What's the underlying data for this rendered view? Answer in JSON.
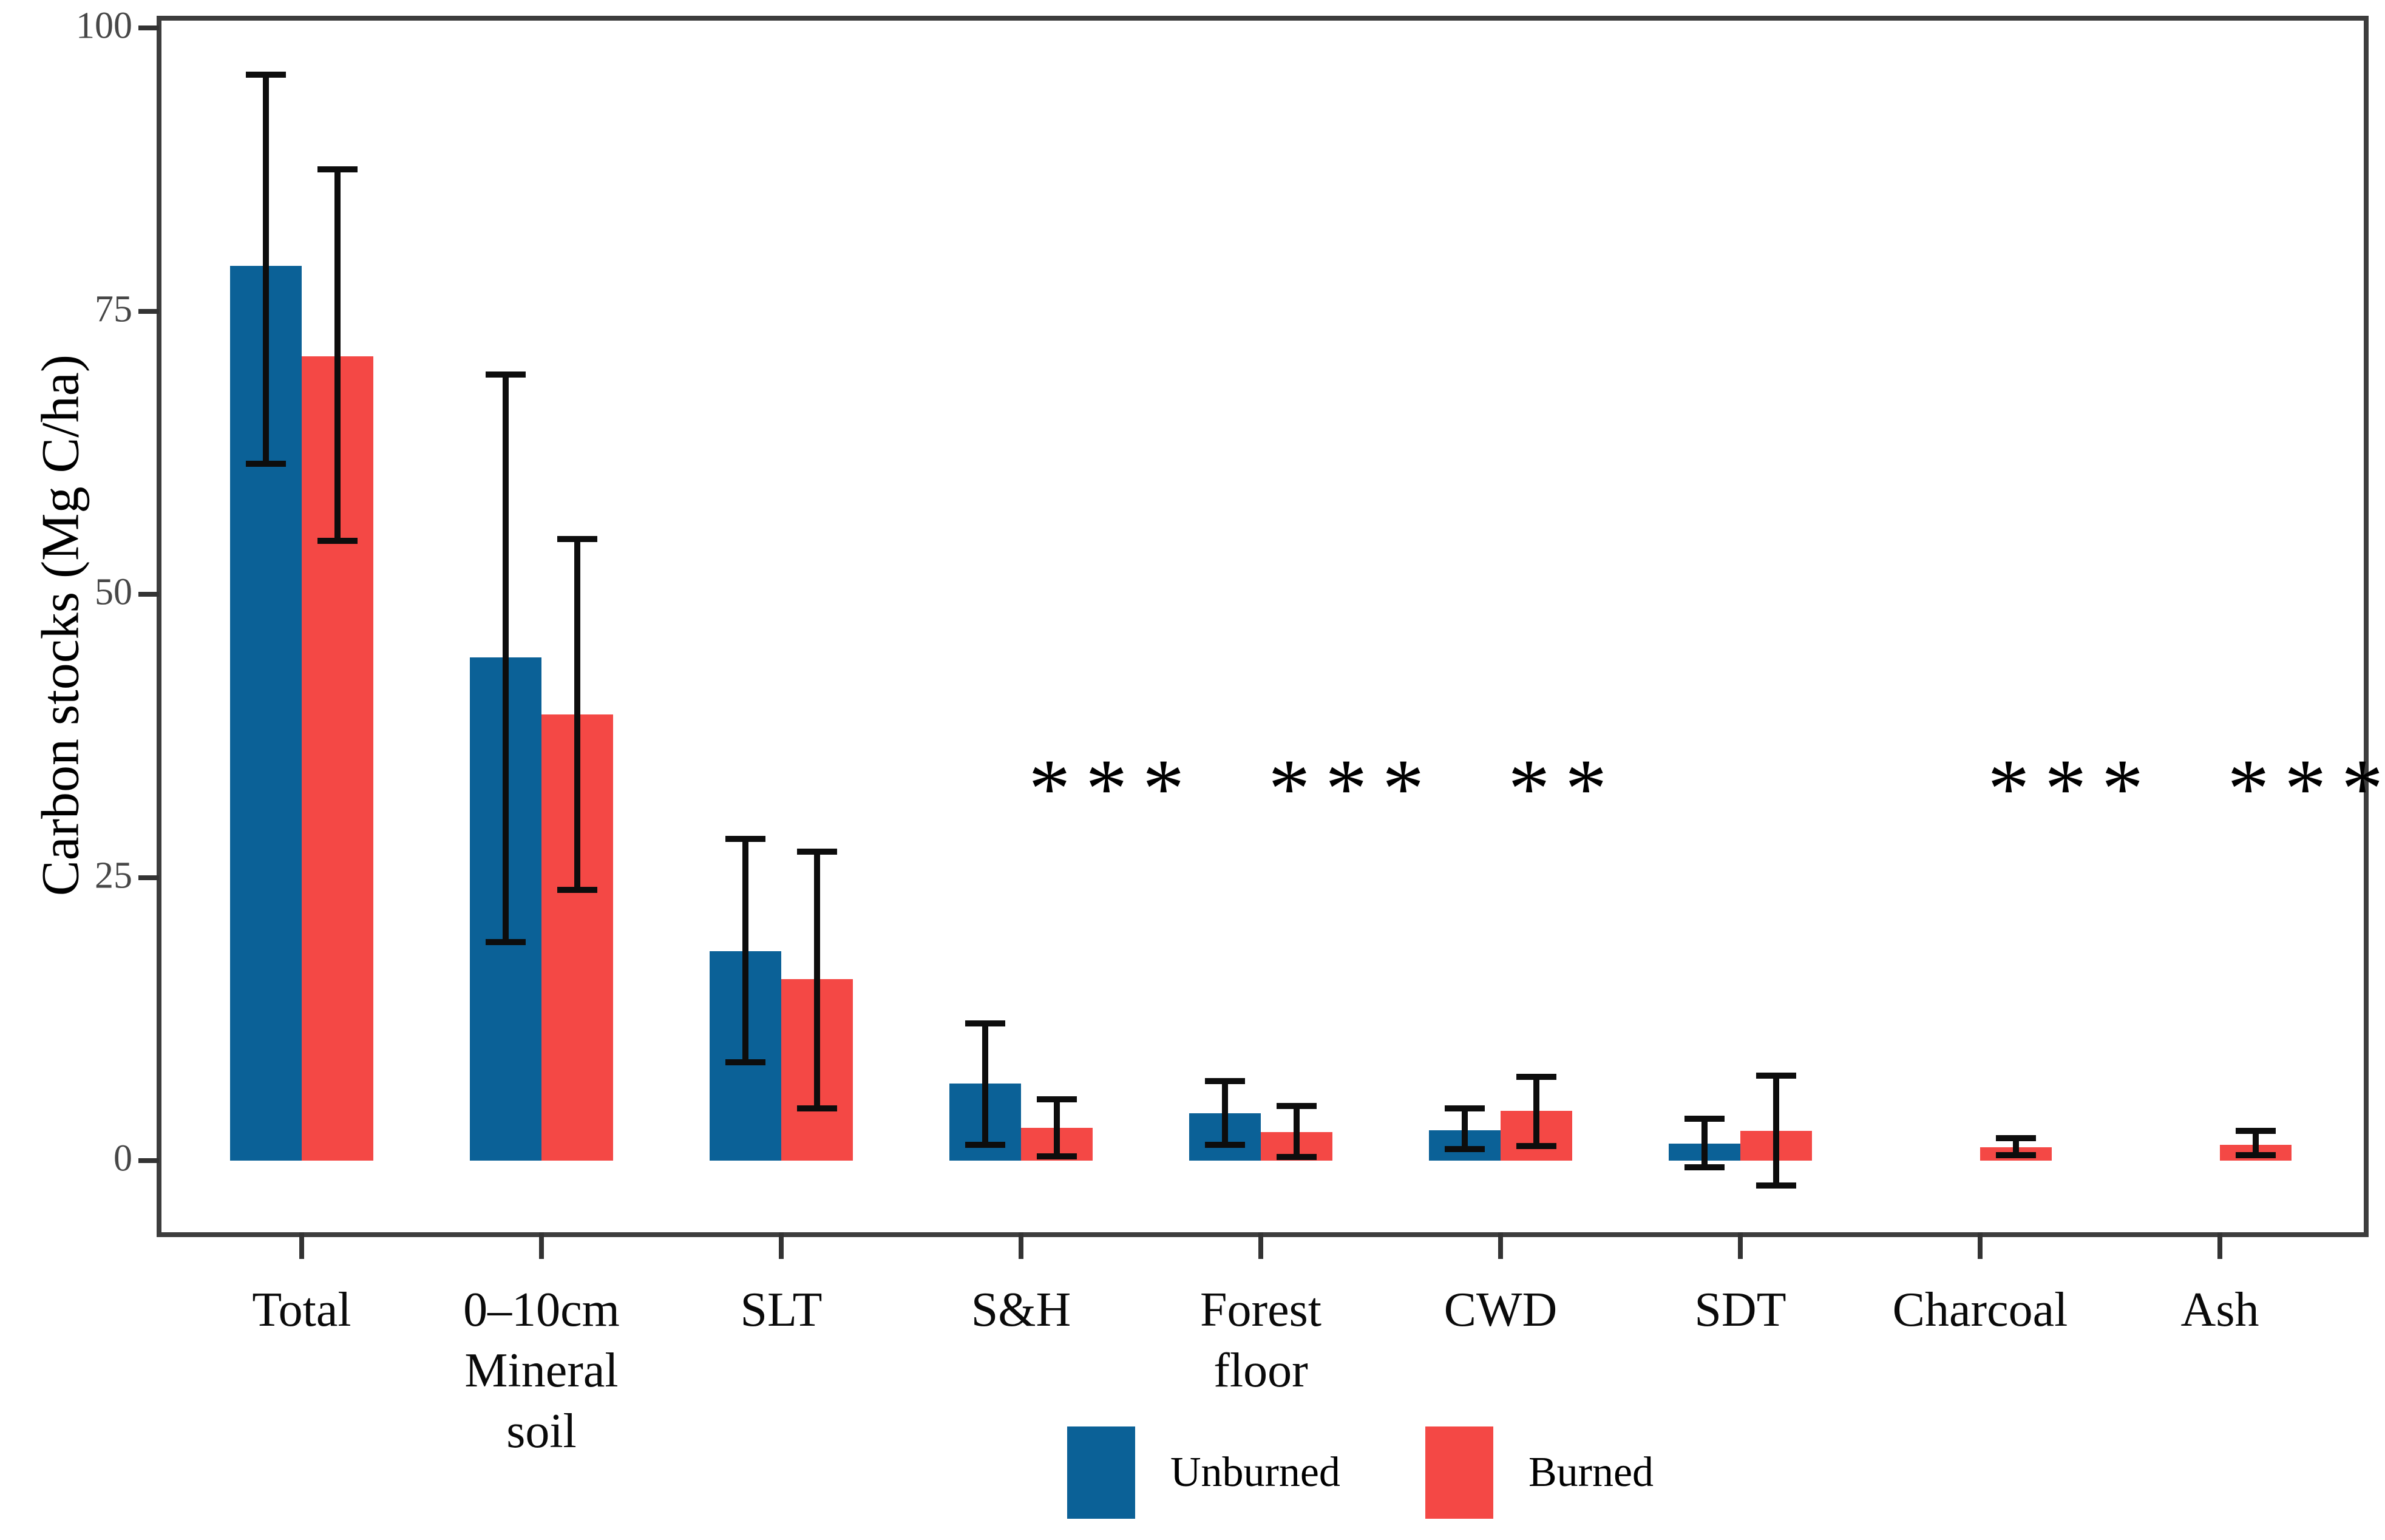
{
  "figure": {
    "background": "#ffffff",
    "accent_blue": "#0B6197",
    "accent_red": "#F44845",
    "border_color": "#3d3d3d"
  },
  "chart_data": {
    "type": "bar",
    "title": "",
    "xlabel": "",
    "ylabel": "Carbon stocks (Mg C/ha)",
    "ylim": [
      -6.5,
      101.5
    ],
    "yticks": [
      "0",
      "25",
      "50",
      "75",
      "100"
    ],
    "ytick_values": [
      0,
      25,
      50,
      75,
      100
    ],
    "grid": "off",
    "legend_position": "bottom-center",
    "error_bars": true,
    "categories": [
      "Total",
      "0–10cm Mineral soil",
      "SLT",
      "S&H",
      "Forest floor",
      "CWD",
      "SDT",
      "Charcoal",
      "Ash"
    ],
    "category_label_lines": [
      [
        "Total"
      ],
      [
        "0–10cm",
        "Mineral",
        "soil"
      ],
      [
        "SLT"
      ],
      [
        "S&H"
      ],
      [
        "Forest",
        "floor"
      ],
      [
        "CWD"
      ],
      [
        "SDT"
      ],
      [
        "Charcoal"
      ],
      [
        "Ash"
      ]
    ],
    "series": [
      {
        "name": "Unburned",
        "color": "#0B6197",
        "values": [
          79.0,
          44.4,
          18.5,
          6.8,
          4.2,
          2.7,
          1.5,
          null,
          null
        ],
        "error_low": [
          61.5,
          19.3,
          8.7,
          1.4,
          1.4,
          1.0,
          -0.6,
          null,
          null
        ],
        "error_high": [
          95.9,
          69.4,
          28.4,
          12.1,
          7.0,
          4.6,
          3.7,
          null,
          null
        ]
      },
      {
        "name": "Burned",
        "color": "#F44845",
        "values": [
          71.0,
          39.4,
          16.0,
          2.9,
          2.5,
          4.4,
          2.6,
          1.2,
          1.4
        ],
        "error_low": [
          54.7,
          23.9,
          4.6,
          0.4,
          0.3,
          1.3,
          -2.2,
          0.5,
          0.5
        ],
        "error_high": [
          87.5,
          54.9,
          27.3,
          5.4,
          4.8,
          7.4,
          7.5,
          2.0,
          2.6
        ]
      }
    ],
    "significance": [
      "",
      "",
      "",
      "***",
      "***",
      "**",
      "",
      "***",
      "***"
    ]
  },
  "legend": {
    "items": [
      {
        "label": "Unburned",
        "color": "#0B6197"
      },
      {
        "label": "Burned",
        "color": "#F44845"
      }
    ]
  }
}
